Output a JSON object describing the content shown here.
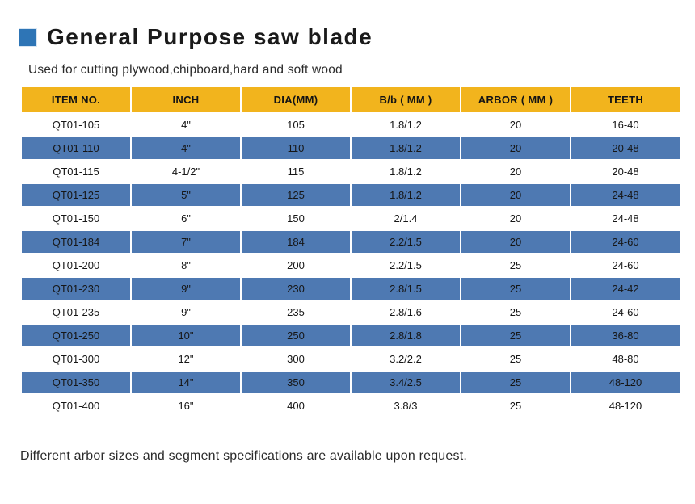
{
  "page": {
    "title": "General Purpose saw blade",
    "subtitle": "Used for cutting plywood,chipboard,hard and soft wood",
    "footer_note": "Different arbor sizes and segment specifications are available upon request."
  },
  "colors": {
    "header_bg": "#f2b41d",
    "row_alt_bg": "#4e79b2",
    "title_square": "#2e75b6",
    "text": "#1a1a1a"
  },
  "icons": {
    "title_bullet": "blue-square-icon"
  },
  "table": {
    "headers": [
      "ITEM NO.",
      "INCH",
      "DIA(MM)",
      "B/b ( MM )",
      "ARBOR ( MM )",
      "TEETH"
    ],
    "rows": [
      [
        "QT01-105",
        "4\"",
        "105",
        "1.8/1.2",
        "20",
        "16-40"
      ],
      [
        "QT01-110",
        "4\"",
        "110",
        "1.8/1.2",
        "20",
        "20-48"
      ],
      [
        "QT01-115",
        "4-1/2\"",
        "115",
        "1.8/1.2",
        "20",
        "20-48"
      ],
      [
        "QT01-125",
        "5\"",
        "125",
        "1.8/1.2",
        "20",
        "24-48"
      ],
      [
        "QT01-150",
        "6\"",
        "150",
        "2/1.4",
        "20",
        "24-48"
      ],
      [
        "QT01-184",
        "7\"",
        "184",
        "2.2/1.5",
        "20",
        "24-60"
      ],
      [
        "QT01-200",
        "8\"",
        "200",
        "2.2/1.5",
        "25",
        "24-60"
      ],
      [
        "QT01-230",
        "9\"",
        "230",
        "2.8/1.5",
        "25",
        "24-42"
      ],
      [
        "QT01-235",
        "9\"",
        "235",
        "2.8/1.6",
        "25",
        "24-60"
      ],
      [
        "QT01-250",
        "10\"",
        "250",
        "2.8/1.8",
        "25",
        "36-80"
      ],
      [
        "QT01-300",
        "12\"",
        "300",
        "3.2/2.2",
        "25",
        "48-80"
      ],
      [
        "QT01-350",
        "14\"",
        "350",
        "3.4/2.5",
        "25",
        "48-120"
      ],
      [
        "QT01-400",
        "16\"",
        "400",
        "3.8/3",
        "25",
        "48-120"
      ]
    ]
  }
}
